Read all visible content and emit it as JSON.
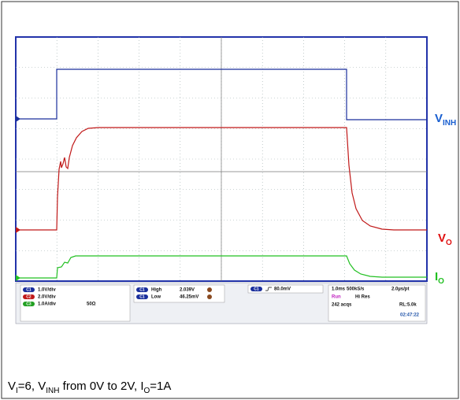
{
  "channel_labels": [
    {
      "main": "V",
      "sub": "INH"
    },
    {
      "main": "V",
      "sub": "O"
    },
    {
      "main": "I",
      "sub": "O"
    }
  ],
  "channels": [
    {
      "badge": "C1",
      "scale": "1.0V/div"
    },
    {
      "badge": "C2",
      "scale": "2.0V/div"
    },
    {
      "badge": "C3",
      "scale": "1.0A/div",
      "impedance": "50Ω"
    }
  ],
  "measurements": [
    {
      "badge": "C1",
      "name": "High",
      "value": "2.039V"
    },
    {
      "badge": "C1",
      "name": "Low",
      "value": "46.25mV"
    }
  ],
  "trigger": {
    "badge": "C1",
    "level": "80.0mV"
  },
  "acquisition": {
    "timebase": "1.0ms",
    "sample_rate": "500kS/s",
    "resolution": "2.0µs/pt",
    "state": "Run",
    "mode": "Hi Res",
    "acqs": "242 acqs",
    "record_length": "RL:5.0k",
    "time": "02:47:22"
  },
  "caption": [
    "V",
    "I",
    "=6, V",
    "INH",
    " from 0V to 2V, I",
    "O",
    "=1A"
  ]
}
